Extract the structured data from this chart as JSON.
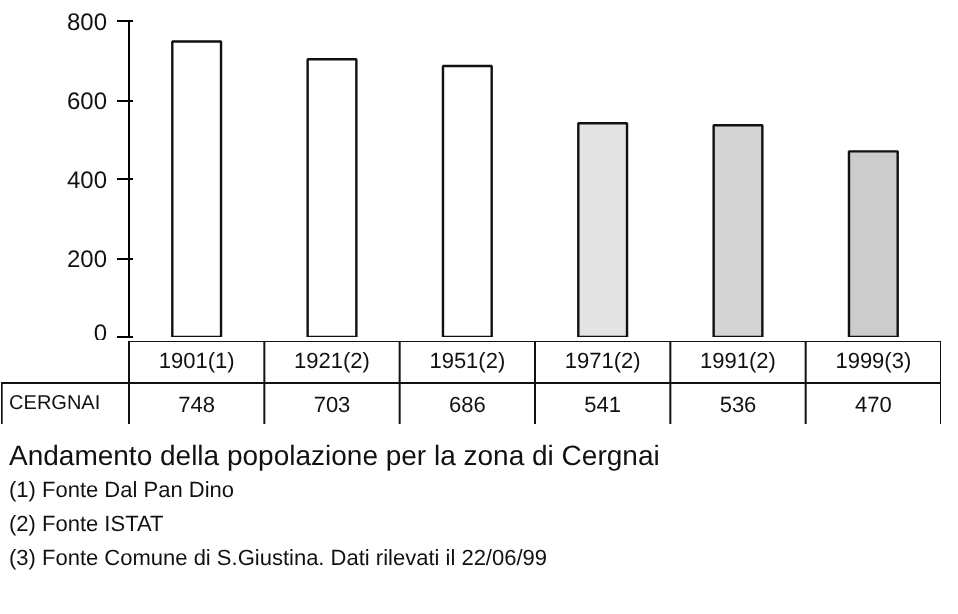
{
  "chart_data": {
    "type": "bar",
    "title": "Andamento della popolazione per la zona di Cergnai",
    "categories": [
      "1901(1)",
      "1921(2)",
      "1951(2)",
      "1971(2)",
      "1991(2)",
      "1999(3)"
    ],
    "series": [
      {
        "name": "CERGNAI",
        "colors": [
          "#ffffff",
          "#ffffff",
          "#ffffff",
          "#e4e4e4",
          "#d4d4d4",
          "#cccccc"
        ],
        "values": [
          748,
          703,
          686,
          541,
          536,
          470
        ]
      }
    ],
    "ylim": [
      0,
      800
    ],
    "yticks": [
      0,
      200,
      400,
      600,
      800
    ],
    "data_labels": true,
    "annotations": [
      "(1) Fonte Dal Pan Dino",
      "(2) Fonte ISTAT",
      "(3) Fonte Comune di S.Giustina. Dati rilevati il 22/06/99"
    ]
  }
}
